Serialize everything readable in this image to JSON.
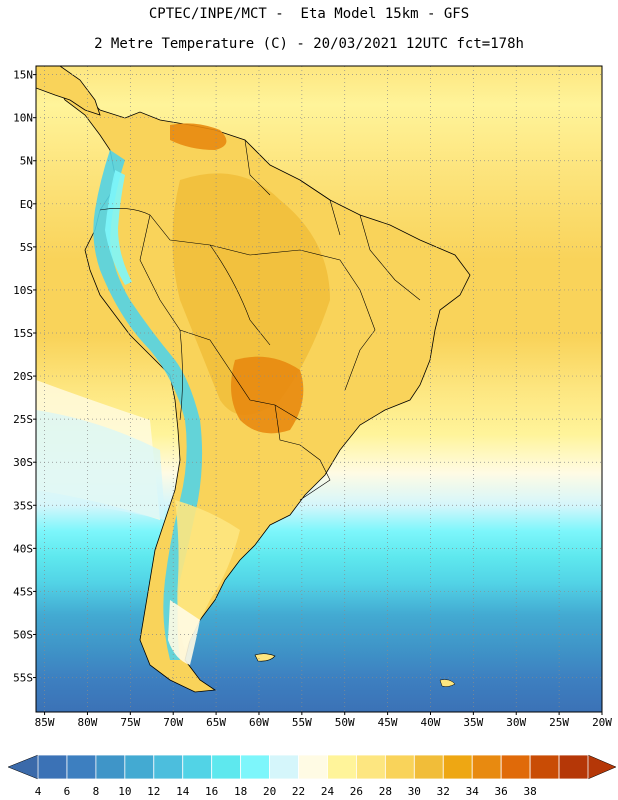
{
  "header": {
    "title_line1": "CPTEC/INPE/MCT -  Eta Model 15km - GFS",
    "title_line2": "2 Metre Temperature (C) - 20/03/2021 12UTC fct=178h"
  },
  "map": {
    "lat_labels": [
      "15N",
      "10N",
      "5N",
      "EQ",
      "5S",
      "10S",
      "15S",
      "20S",
      "25S",
      "30S",
      "35S",
      "40S",
      "45S",
      "50S",
      "55S"
    ],
    "lon_labels": [
      "85W",
      "80W",
      "75W",
      "70W",
      "65W",
      "60W",
      "55W",
      "50W",
      "45W",
      "40W",
      "35W",
      "30W",
      "25W",
      "20W"
    ],
    "lon_range": [
      -86,
      -20
    ],
    "lat_range": [
      -59,
      16
    ],
    "gridlines": "dotted"
  },
  "colorbar": {
    "labels": [
      "4",
      "6",
      "8",
      "10",
      "12",
      "14",
      "16",
      "18",
      "20",
      "22",
      "24",
      "26",
      "28",
      "30",
      "32",
      "34",
      "36",
      "38"
    ],
    "colors": [
      "#3b72b6",
      "#3d7fc0",
      "#3f95c8",
      "#43aad2",
      "#4cbedd",
      "#52d3e6",
      "#5ee8ee",
      "#7df6fb",
      "#d5f6fb",
      "#fffbe4",
      "#fff49a",
      "#fde680",
      "#f9d35a",
      "#f1bd39",
      "#eea713",
      "#e88a10",
      "#e06a09",
      "#c94c05",
      "#b53707"
    ],
    "lower_arrow_color": "#3b6aaa",
    "upper_arrow_color": "#b53707"
  }
}
